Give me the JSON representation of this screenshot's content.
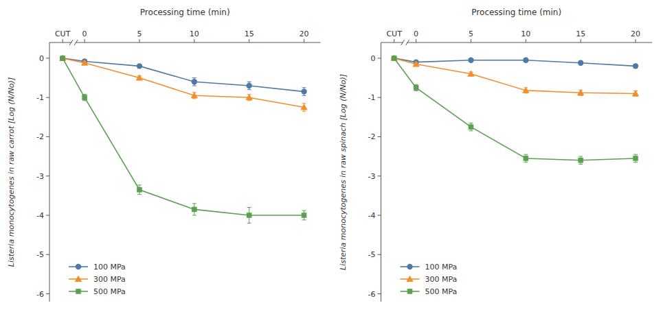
{
  "chart_data": [
    {
      "type": "line",
      "xlabel": "Processing time (min)",
      "ylabel": "Listeria monocytogenes in raw carrot [Log (N/No)]",
      "x": [
        -2,
        0,
        5,
        10,
        15,
        20
      ],
      "xlim": [
        -3.2,
        21.5
      ],
      "xticks": [
        {
          "value": -2,
          "label": "CUT"
        },
        0,
        5,
        10,
        15,
        20
      ],
      "ylim": [
        -6.2,
        0.4
      ],
      "yticks": [
        0,
        -1,
        -2,
        -3,
        -4,
        -5,
        -6
      ],
      "grid": false,
      "legend": "lower left",
      "series": [
        {
          "name": "100 MPa",
          "color": "#4e79a7",
          "marker": "circle",
          "values": [
            0,
            -0.08,
            -0.2,
            -0.6,
            -0.7,
            -0.85
          ],
          "errors": [
            0,
            0.04,
            0.04,
            0.1,
            0.1,
            0.1
          ]
        },
        {
          "name": "300 MPa",
          "color": "#f28e2b",
          "marker": "triangle",
          "values": [
            0,
            -0.12,
            -0.5,
            -0.95,
            -1.0,
            -1.25
          ],
          "errors": [
            0,
            0.04,
            0.05,
            0.08,
            0.08,
            0.1
          ]
        },
        {
          "name": "500 MPa",
          "color": "#59a14f",
          "marker": "square",
          "values": [
            0,
            -1.0,
            -3.35,
            -3.85,
            -4.0,
            -4.0
          ],
          "errors": [
            0,
            0.08,
            0.12,
            0.15,
            0.2,
            0.12
          ]
        }
      ]
    },
    {
      "type": "line",
      "xlabel": "Processing time (min)",
      "ylabel": "Listeria monocytogenes in raw spinach [Log (N/No)]",
      "x": [
        -2,
        0,
        5,
        10,
        15,
        20
      ],
      "xlim": [
        -3.2,
        21.5
      ],
      "xticks": [
        {
          "value": -2,
          "label": "CUT"
        },
        0,
        5,
        10,
        15,
        20
      ],
      "ylim": [
        -6.2,
        0.4
      ],
      "yticks": [
        0,
        -1,
        -2,
        -3,
        -4,
        -5,
        -6
      ],
      "grid": false,
      "legend": "lower left",
      "series": [
        {
          "name": "100 MPa",
          "color": "#4e79a7",
          "marker": "circle",
          "values": [
            0,
            -0.1,
            -0.05,
            -0.05,
            -0.12,
            -0.2
          ],
          "errors": [
            0,
            0.04,
            0.04,
            0.05,
            0.05,
            0.05
          ]
        },
        {
          "name": "300 MPa",
          "color": "#f28e2b",
          "marker": "triangle",
          "values": [
            0,
            -0.15,
            -0.4,
            -0.82,
            -0.88,
            -0.9
          ],
          "errors": [
            0,
            0.04,
            0.05,
            0.07,
            0.07,
            0.07
          ]
        },
        {
          "name": "500 MPa",
          "color": "#59a14f",
          "marker": "square",
          "values": [
            0,
            -0.75,
            -1.75,
            -2.55,
            -2.6,
            -2.55
          ],
          "errors": [
            0,
            0.08,
            0.1,
            0.1,
            0.1,
            0.1
          ]
        }
      ]
    }
  ]
}
